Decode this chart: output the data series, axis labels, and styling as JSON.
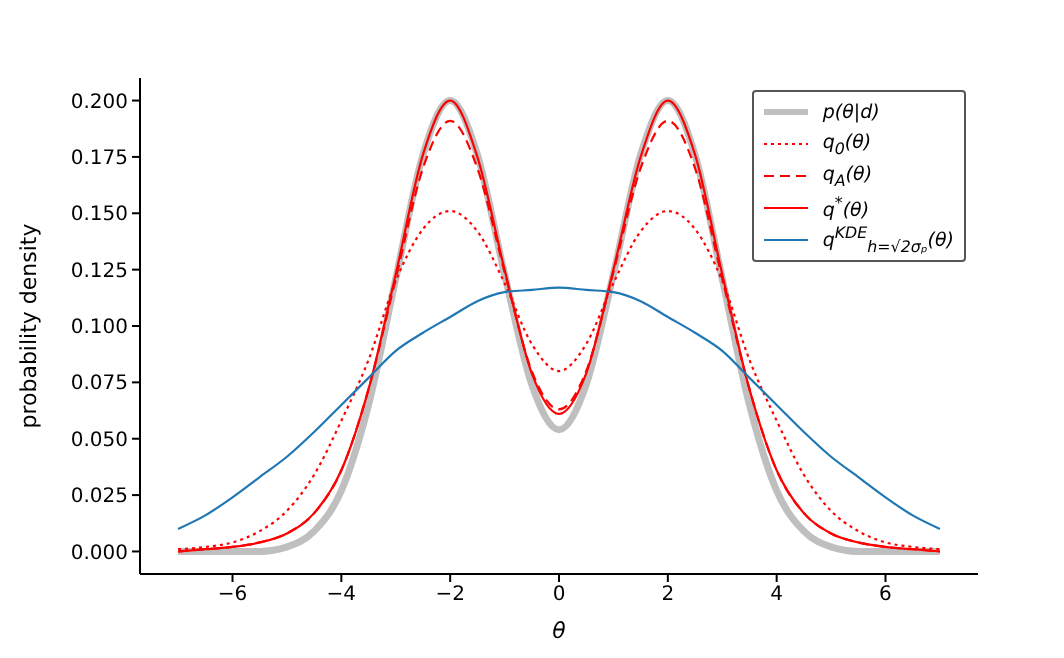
{
  "chart_data": {
    "type": "line",
    "xlabel": "θ",
    "ylabel": "probability density",
    "x": [
      -7,
      -6.5,
      -6,
      -5.5,
      -5,
      -4.5,
      -4,
      -3.5,
      -3,
      -2.5,
      -2,
      -1.5,
      -1,
      -0.5,
      0,
      0.5,
      1,
      1.5,
      2,
      2.5,
      3,
      3.5,
      4,
      4.5,
      5,
      5.5,
      6,
      6.5,
      7
    ],
    "xlim": [
      -7.7,
      7.7
    ],
    "xticks": [
      {
        "value": -6,
        "label": "−6"
      },
      {
        "value": -4,
        "label": "−4"
      },
      {
        "value": -2,
        "label": "−2"
      },
      0,
      2,
      4,
      6
    ],
    "ylim": [
      -0.01,
      0.21
    ],
    "yticks": [
      {
        "value": 0,
        "label": "0.000"
      },
      {
        "value": 0.025,
        "label": "0.025"
      },
      {
        "value": 0.05,
        "label": "0.050"
      },
      {
        "value": 0.075,
        "label": "0.075"
      },
      {
        "value": 0.1,
        "label": "0.100"
      },
      {
        "value": 0.125,
        "label": "0.125"
      },
      {
        "value": 0.15,
        "label": "0.150"
      },
      {
        "value": 0.175,
        "label": "0.175"
      },
      {
        "value": 0.2,
        "label": "0.200"
      }
    ],
    "grid": false,
    "legend": "top right",
    "marker": "none",
    "series": [
      {
        "name": "p(θ|d)",
        "color": "#bfbfbf",
        "line_style": "solid",
        "values": [
          0,
          0,
          0,
          0,
          0.002,
          0.009,
          0.027,
          0.065,
          0.121,
          0.176,
          0.2,
          0.176,
          0.123,
          0.074,
          0.054,
          0.074,
          0.123,
          0.176,
          0.2,
          0.176,
          0.121,
          0.065,
          0.027,
          0.009,
          0.002,
          0,
          0,
          0,
          0
        ]
      },
      {
        "name": "q$_{0}$(θ)",
        "color": "#ff0000",
        "line_style": "dotted",
        "values": [
          0.001,
          0.002,
          0.004,
          0.009,
          0.018,
          0.034,
          0.058,
          0.085,
          0.12,
          0.143,
          0.151,
          0.142,
          0.119,
          0.092,
          0.08,
          0.092,
          0.119,
          0.142,
          0.151,
          0.143,
          0.12,
          0.085,
          0.058,
          0.034,
          0.018,
          0.009,
          0.004,
          0.002,
          0.001
        ]
      },
      {
        "name": "q$_{A}$(θ)",
        "color": "#ff0000",
        "line_style": "dashed",
        "values": [
          0,
          0.001,
          0.002,
          0.004,
          0.008,
          0.017,
          0.036,
          0.072,
          0.121,
          0.17,
          0.191,
          0.17,
          0.124,
          0.08,
          0.063,
          0.08,
          0.124,
          0.17,
          0.191,
          0.17,
          0.121,
          0.072,
          0.036,
          0.017,
          0.008,
          0.004,
          0.002,
          0.001,
          0
        ]
      },
      {
        "name": "q$^{*}$(θ)",
        "color": "#ff0000",
        "line_style": "solid",
        "values": [
          0,
          0.001,
          0.002,
          0.004,
          0.008,
          0.017,
          0.036,
          0.072,
          0.123,
          0.176,
          0.2,
          0.175,
          0.125,
          0.079,
          0.061,
          0.079,
          0.125,
          0.175,
          0.2,
          0.176,
          0.123,
          0.072,
          0.036,
          0.017,
          0.008,
          0.004,
          0.002,
          0.001,
          0
        ]
      },
      {
        "name": "q$^{KDE}$$_{h=√2σₚ}$(θ)",
        "color": "#1f77b4",
        "line_style": "solid",
        "values": [
          0.01,
          0.016,
          0.024,
          0.033,
          0.042,
          0.053,
          0.065,
          0.077,
          0.089,
          0.097,
          0.104,
          0.111,
          0.115,
          0.116,
          0.117,
          0.116,
          0.115,
          0.111,
          0.104,
          0.097,
          0.089,
          0.077,
          0.065,
          0.053,
          0.042,
          0.033,
          0.024,
          0.016,
          0.01
        ]
      }
    ]
  }
}
